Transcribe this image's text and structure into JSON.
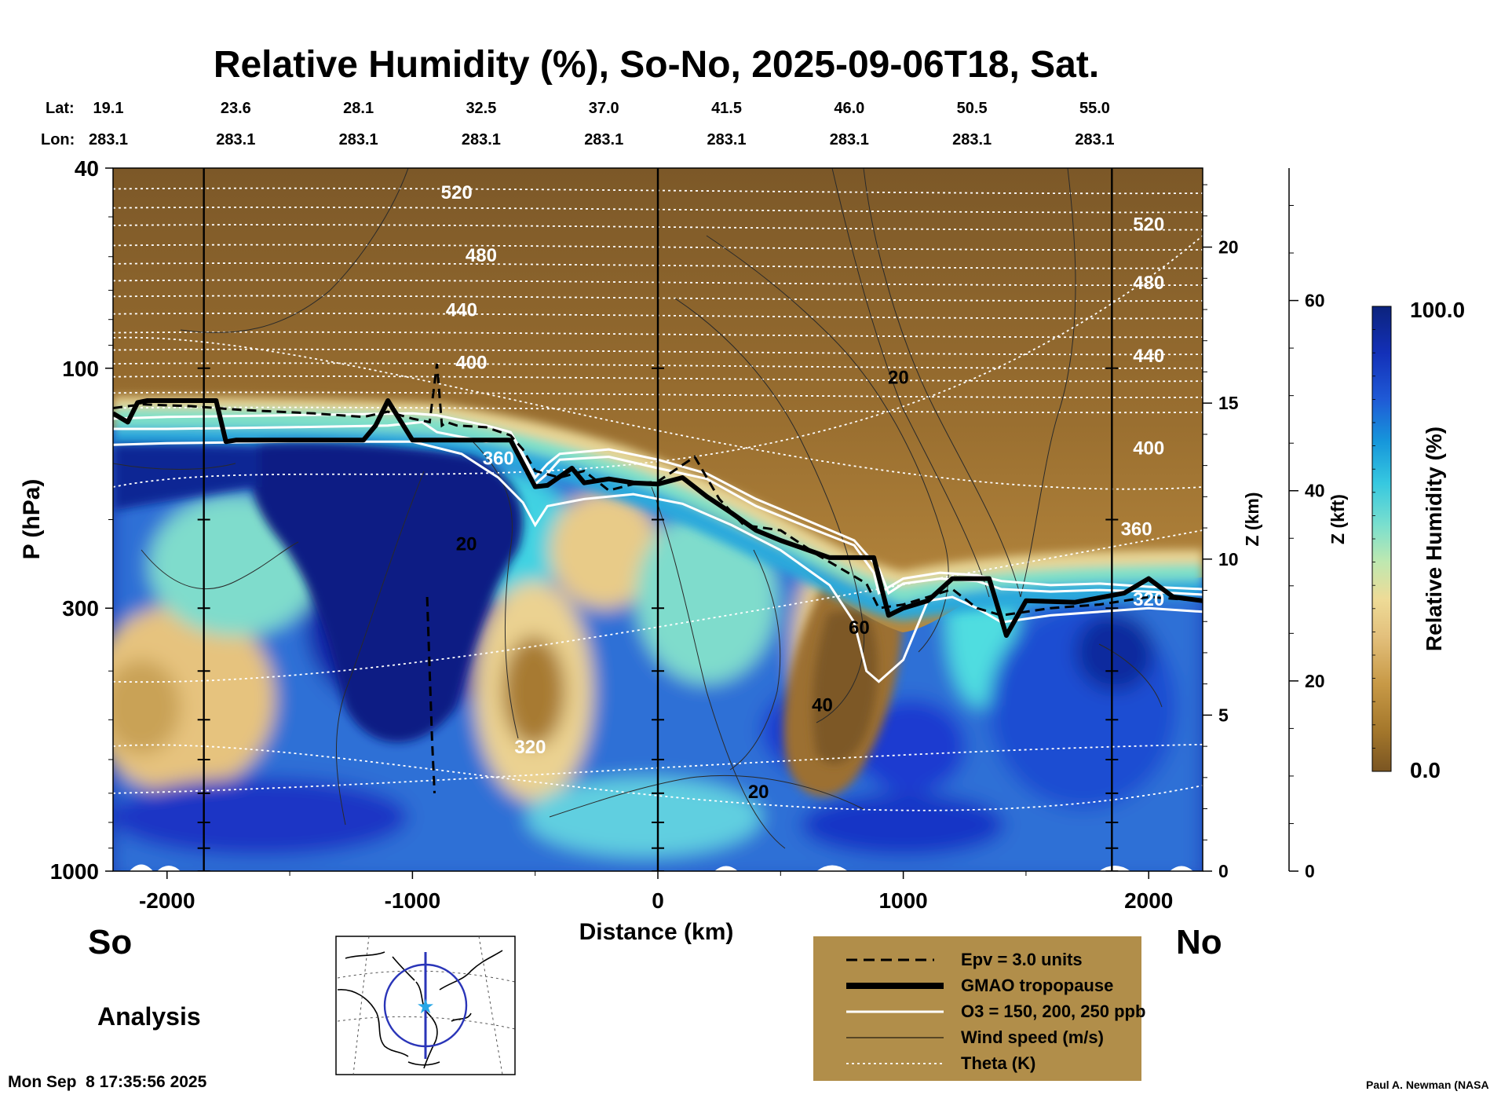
{
  "chart_data": {
    "type": "heatmap",
    "title": "Relative Humidity (%), So-No, 2025-09-06T18, Sat.",
    "xlabel": "Distance (km)",
    "ylabel": "P (hPa)",
    "y2label": "Z (km)",
    "y3label": "Z (kft)",
    "colorbar_label": "Relative Humidity (%)",
    "colorbar_max": "100.0",
    "colorbar_min": "0.0",
    "xlim": [
      -2220,
      2220
    ],
    "ylim": [
      1000,
      40
    ],
    "x_ticks": [
      -2000,
      -1000,
      0,
      1000,
      2000
    ],
    "x_tick_labels": [
      "-2000",
      "-1000",
      "0",
      "1000",
      "2000"
    ],
    "p_ticks": [
      1000,
      300,
      100,
      40
    ],
    "p_tick_labels": [
      "1000",
      "300",
      "100",
      "40"
    ],
    "z_km_ticks": [
      0,
      5,
      10,
      15,
      20
    ],
    "z_km_labels": [
      "0",
      "5",
      "10",
      "15",
      "20"
    ],
    "z_kft_ticks": [
      0,
      20,
      40,
      60
    ],
    "z_kft_labels": [
      "0",
      "20",
      "40",
      "60"
    ],
    "lat_label": "Lat:",
    "lon_label": "Lon:",
    "lat_values": [
      "19.1",
      "23.6",
      "28.1",
      "32.5",
      "37.0",
      "41.5",
      "46.0",
      "50.5",
      "55.0"
    ],
    "lon_values": [
      "283.1",
      "283.1",
      "283.1",
      "283.1",
      "283.1",
      "283.1",
      "283.1",
      "283.1",
      "283.1"
    ],
    "latlon_distances_km": [
      -2220,
      -1720,
      -1220,
      -720,
      -220,
      280,
      780,
      1280,
      1780
    ],
    "theta_contours_K": [
      320,
      360,
      400,
      440,
      480,
      520,
      560
    ],
    "contour_labels": [
      {
        "text": "520",
        "x_km": -820,
        "p_hpa": 45
      },
      {
        "text": "480",
        "x_km": -720,
        "p_hpa": 60
      },
      {
        "text": "440",
        "x_km": -800,
        "p_hpa": 77
      },
      {
        "text": "400",
        "x_km": -760,
        "p_hpa": 98
      },
      {
        "text": "360",
        "x_km": -650,
        "p_hpa": 152
      },
      {
        "text": "320",
        "x_km": -520,
        "p_hpa": 570
      },
      {
        "text": "520",
        "x_km": 2000,
        "p_hpa": 52
      },
      {
        "text": "480",
        "x_km": 2000,
        "p_hpa": 68
      },
      {
        "text": "440",
        "x_km": 2000,
        "p_hpa": 95
      },
      {
        "text": "400",
        "x_km": 2000,
        "p_hpa": 145
      },
      {
        "text": "360",
        "x_km": 1950,
        "p_hpa": 210
      },
      {
        "text": "320",
        "x_km": 2000,
        "p_hpa": 290
      },
      {
        "text": "20",
        "x_km": 980,
        "p_hpa": 105
      },
      {
        "text": "20",
        "x_km": -780,
        "p_hpa": 225
      },
      {
        "text": "60",
        "x_km": 820,
        "p_hpa": 330
      },
      {
        "text": "40",
        "x_km": 670,
        "p_hpa": 470
      },
      {
        "text": "20",
        "x_km": 410,
        "p_hpa": 700
      }
    ],
    "series": [
      {
        "name": "GMAO tropopause",
        "x_km": [
          -2220,
          -2160,
          -2120,
          -2080,
          -1800,
          -1760,
          -1720,
          -1200,
          -1150,
          -1100,
          -1000,
          -960,
          -800,
          -600,
          -500,
          -450,
          -350,
          -300,
          -200,
          -100,
          0,
          100,
          200,
          300,
          400,
          500,
          700,
          880,
          940,
          1000,
          1100,
          1200,
          1300,
          1350,
          1420,
          1500,
          1700,
          1900,
          2000,
          2100,
          2220
        ],
        "p_hpa": [
          123,
          128,
          117,
          116,
          116,
          140,
          139,
          139,
          130,
          116,
          139,
          139,
          139,
          139,
          172,
          171,
          158,
          169,
          166,
          169,
          170,
          165,
          180,
          194,
          210,
          220,
          238,
          238,
          310,
          300,
          290,
          262,
          262,
          262,
          340,
          290,
          292,
          280,
          262,
          285,
          290
        ]
      },
      {
        "name": "Epv = 3.0 units",
        "x_km": [
          -2220,
          -2100,
          -1900,
          -1700,
          -1400,
          -1200,
          -1100,
          -1000,
          -930,
          -900,
          -880,
          -860,
          -820,
          -700,
          -600,
          -550,
          -500,
          -400,
          -300,
          -200,
          -100,
          0,
          150,
          250,
          350,
          500,
          650,
          850,
          900,
          1000,
          1100,
          1200,
          1300,
          1400,
          1600,
          1800,
          2000,
          2220
        ],
        "p_hpa": [
          120,
          118,
          119,
          121,
          123,
          125,
          122,
          126,
          128,
          98,
          130,
          128,
          130,
          131,
          136,
          145,
          160,
          165,
          160,
          175,
          170,
          168,
          150,
          182,
          205,
          210,
          235,
          268,
          300,
          295,
          285,
          275,
          300,
          310,
          300,
          295,
          285,
          290
        ]
      },
      {
        "name": "Epv = 3.0 units (lower)",
        "x_km": [
          -940,
          -930,
          -920,
          -910
        ],
        "p_hpa": [
          285,
          400,
          550,
          700
        ]
      },
      {
        "name": "O3 = 150 ppb",
        "x_km": [
          -2220,
          -2000,
          -1500,
          -1100,
          -960,
          -900,
          -700,
          -600,
          -550,
          -500,
          -450,
          -400,
          -200,
          0,
          200,
          400,
          600,
          800,
          880,
          900,
          1000,
          1150,
          1300,
          1400,
          1600,
          1800,
          2000,
          2220
        ],
        "p_hpa": [
          132,
          132,
          131,
          130,
          128,
          134,
          140,
          138,
          150,
          170,
          162,
          152,
          150,
          158,
          166,
          188,
          206,
          225,
          255,
          280,
          262,
          255,
          258,
          265,
          270,
          268,
          272,
          275
        ]
      },
      {
        "name": "O3 = 200 ppb",
        "x_km": [
          -2220,
          -2000,
          -1500,
          -1000,
          -900,
          -700,
          -600,
          -550,
          -500,
          -450,
          -400,
          -200,
          0,
          200,
          400,
          600,
          800,
          900,
          940,
          1000,
          1150,
          1300,
          1400,
          1600,
          1800,
          2000,
          2220
        ],
        "p_hpa": [
          126,
          125,
          124,
          123,
          124,
          130,
          134,
          148,
          165,
          155,
          148,
          145,
          152,
          162,
          182,
          200,
          220,
          250,
          280,
          268,
          262,
          265,
          275,
          278,
          276,
          278,
          282
        ]
      },
      {
        "name": "O3 = 250 ppb",
        "x_km": [
          -2220,
          -2000,
          -1500,
          -1000,
          -800,
          -650,
          -550,
          -500,
          -450,
          -300,
          -100,
          100,
          300,
          500,
          700,
          800,
          850,
          900,
          1000,
          1100,
          1200,
          1300,
          1400,
          1600,
          1800,
          2000,
          2220
        ],
        "p_hpa": [
          142,
          141,
          140,
          140,
          148,
          165,
          185,
          205,
          188,
          182,
          178,
          186,
          205,
          230,
          270,
          320,
          400,
          420,
          380,
          290,
          285,
          300,
          320,
          310,
          305,
          300,
          305
        ]
      }
    ],
    "legend": [
      {
        "label": "Epv = 3.0 units",
        "style": "dashed"
      },
      {
        "label": "GMAO tropopause",
        "style": "thick-solid"
      },
      {
        "label": "O3 = 150, 200, 250 ppb",
        "style": "white-solid"
      },
      {
        "label": "Wind speed (m/s)",
        "style": "thin-solid"
      },
      {
        "label": "Theta (K)",
        "style": "white-dotted"
      }
    ],
    "legend_position": "bottom-right"
  },
  "figure": {
    "south_label": "So",
    "north_label": "No",
    "analysis_label": "Analysis",
    "timestamp": "Mon Sep  8 17:35:56 2025",
    "credit": "Paul A. Newman (NASA",
    "inset_map": "map-inset-north-america-cross-section"
  },
  "colors": {
    "colorbar_stops": [
      "#7a5522",
      "#a5782c",
      "#c89a47",
      "#e3c07c",
      "#eedb97",
      "#bfe8b0",
      "#7adfce",
      "#36c8e0",
      "#1696db",
      "#1f5ad6",
      "#1330b8",
      "#0c237c"
    ],
    "legend_box": "#b18e4a",
    "theta": "#ffffff",
    "o3": "#ffffff",
    "tropopause": "#000000",
    "epv": "#000000",
    "wind": "#333333"
  }
}
